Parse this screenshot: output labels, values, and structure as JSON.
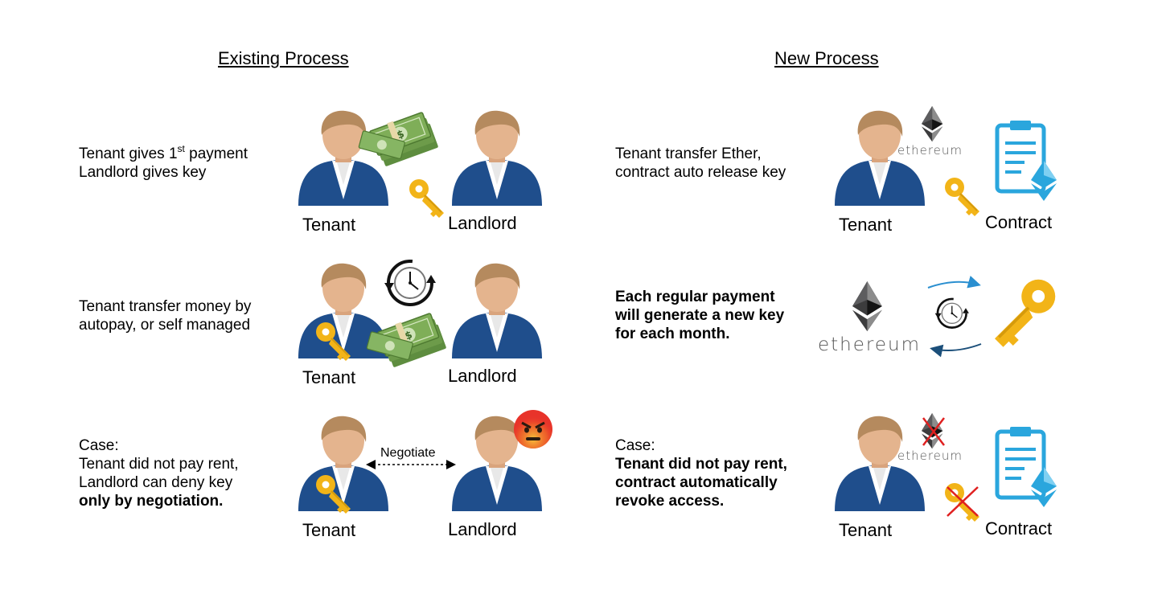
{
  "existing": {
    "heading": "Existing Process",
    "row1": {
      "line1_pre": "Tenant gives 1",
      "line1_sup": "st",
      "line1_post": " payment",
      "line2": "Landlord gives key",
      "tenant": "Tenant",
      "landlord": "Landlord"
    },
    "row2": {
      "line1": "Tenant transfer money by",
      "line2": "autopay, or self managed",
      "tenant": "Tenant",
      "landlord": "Landlord"
    },
    "row3": {
      "line1": "Case:",
      "line2": "Tenant did not pay rent,",
      "line3": "Landlord can deny key",
      "line4": "only by negotiation.",
      "tenant": "Tenant",
      "landlord": "Landlord",
      "negotiate": "Negotiate"
    }
  },
  "new": {
    "heading": "New Process",
    "row1": {
      "line1": "Tenant transfer Ether,",
      "line2": "contract auto release key",
      "tenant": "Tenant",
      "contract": "Contract",
      "eth_word": "ethereum"
    },
    "row2": {
      "line1": "Each regular payment",
      "line2": "will generate a new key",
      "line3": "for each month.",
      "eth_word": "ethereum"
    },
    "row3": {
      "line1": "Case:",
      "line2": "Tenant did not pay rent,",
      "line3": "contract automatically",
      "line4": "revoke access.",
      "tenant": "Tenant",
      "contract": "Contract",
      "eth_word": "ethereum"
    }
  },
  "colors": {
    "suit": "#1f4e8c",
    "skin": "#e4b48e",
    "hair": "#b58a5e",
    "gold": "#f2b418",
    "money": "#6d9b4a",
    "contract": "#2aa6dd",
    "eth": "#3c3c3d",
    "cross": "#e02020",
    "arrow": "#2a8fd0"
  }
}
